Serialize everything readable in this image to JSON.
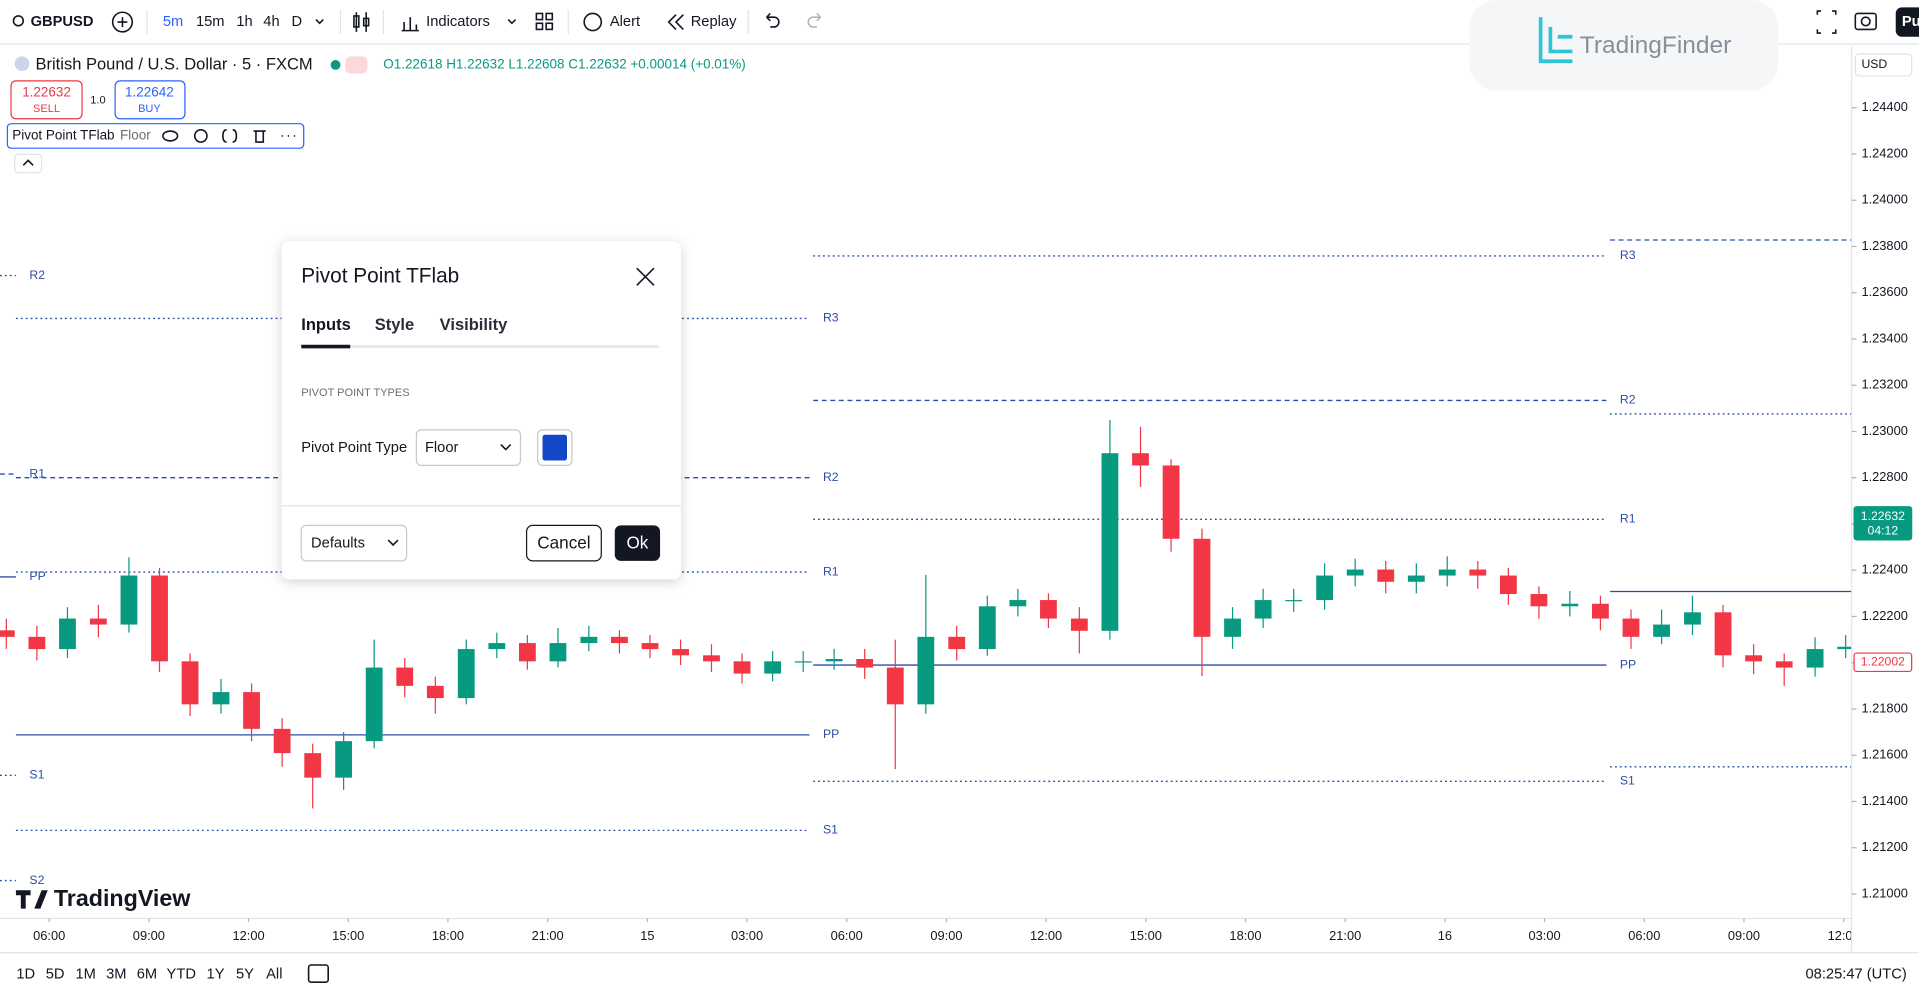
{
  "toolbar": {
    "symbol": "GBPUSD",
    "intervals": [
      "5m",
      "15m",
      "1h",
      "4h",
      "D"
    ],
    "indicators": "Indicators",
    "alert": "Alert",
    "replay": "Replay",
    "right_button": "Pu"
  },
  "watermark": "TradingFinder",
  "legend": {
    "title": "British Pound / U.S. Dollar · 5 · FXCM",
    "ohlc": "O1.22618 H1.22632 L1.22608 C1.22632 +0.00014 (+0.01%)"
  },
  "trade": {
    "sell_price": "1.22632",
    "sell": "SELL",
    "quantity": "1.0",
    "buy_price": "1.22642",
    "buy": "BUY"
  },
  "indicator": {
    "name": "Pivot Point TFlab",
    "type": "Floor"
  },
  "dialog": {
    "title": "Pivot Point TFlab",
    "tabs": [
      "Inputs",
      "Style",
      "Visibility"
    ],
    "section": "PIVOT POINT TYPES",
    "field_label": "Pivot Point Type",
    "field_value": "Floor",
    "swatch_color": "#1447c8",
    "defaults": "Defaults",
    "cancel": "Cancel",
    "ok": "Ok"
  },
  "brand": "TradingView",
  "bottom_bar": {
    "ranges": [
      "1D",
      "5D",
      "1M",
      "3M",
      "6M",
      "YTD",
      "1Y",
      "5Y",
      "All"
    ],
    "clock": "08:25:47 (UTC)"
  },
  "chart_data": {
    "type": "candlestick",
    "currency": "USD",
    "up_color": "#089981",
    "down_color": "#f23645",
    "grid": false,
    "x": [
      -1.29,
      -0.37,
      0.55,
      1.48,
      2.4,
      3.32,
      4.24,
      5.17,
      6.09,
      7.01,
      7.93,
      8.86,
      9.78,
      10.7,
      11.62,
      12.55,
      13.47,
      14.39,
      15.31,
      16.24,
      17.16,
      18.08,
      19.0,
      19.93,
      20.85,
      21.77,
      22.69,
      23.62,
      24.54,
      25.46,
      26.38,
      27.31,
      28.23,
      29.15,
      30.07,
      31.0,
      31.92,
      32.84,
      33.76,
      34.69,
      35.61,
      36.53,
      37.45,
      38.38,
      39.3,
      40.22,
      41.14,
      42.07,
      42.99,
      43.91,
      44.83,
      45.76,
      46.68,
      47.6,
      48.52,
      49.45,
      50.37,
      51.29,
      52.21,
      53.14,
      54.06
    ],
    "open": [
      1.2214,
      1.22112,
      1.22059,
      1.22191,
      1.22165,
      1.22377,
      1.22006,
      1.2182,
      1.21873,
      1.21714,
      1.21609,
      1.21503,
      1.21661,
      1.21979,
      1.219,
      1.21847,
      1.22059,
      1.22085,
      1.22006,
      1.22085,
      1.22112,
      1.22085,
      1.22059,
      1.22032,
      1.22006,
      1.21953,
      1.22006,
      1.22006,
      1.22016,
      1.21979,
      1.2182,
      1.22112,
      1.22059,
      1.22244,
      1.22271,
      1.22191,
      1.22138,
      1.22906,
      1.22853,
      1.22536,
      1.22112,
      1.22191,
      1.22271,
      1.22271,
      1.22377,
      1.22403,
      1.2235,
      1.22377,
      1.22403,
      1.22377,
      1.22297,
      1.22244,
      1.22255,
      1.22191,
      1.22112,
      1.22165,
      1.22218,
      1.22032,
      1.22006,
      1.21979,
      1.22059
    ],
    "high": [
      1.2219,
      1.2216,
      1.2224,
      1.2225,
      1.22456,
      1.2241,
      1.2204,
      1.2193,
      1.2191,
      1.2176,
      1.2165,
      1.217,
      1.221,
      1.2202,
      1.2194,
      1.221,
      1.2213,
      1.2212,
      1.2215,
      1.2216,
      1.2214,
      1.2212,
      1.221,
      1.2208,
      1.2204,
      1.2205,
      1.2205,
      1.2206,
      1.2206,
      1.221,
      1.2238,
      1.2216,
      1.2229,
      1.2232,
      1.223,
      1.2224,
      1.23049,
      1.2302,
      1.2288,
      1.2258,
      1.2224,
      1.2232,
      1.2232,
      1.2243,
      1.2245,
      1.2244,
      1.2243,
      1.2246,
      1.2244,
      1.2241,
      1.2233,
      1.2231,
      1.2229,
      1.2223,
      1.2223,
      1.2229,
      1.2225,
      1.2208,
      1.2204,
      1.2211,
      1.2212
    ],
    "low": [
      1.2206,
      1.2201,
      1.2202,
      1.2211,
      1.2213,
      1.2196,
      1.2177,
      1.2178,
      1.2166,
      1.2155,
      1.2137,
      1.2145,
      1.2163,
      1.2185,
      1.2178,
      1.2182,
      1.2202,
      1.2197,
      1.2198,
      1.2205,
      1.2204,
      1.2202,
      1.2199,
      1.2196,
      1.2191,
      1.2192,
      1.2196,
      1.2197,
      1.2193,
      1.2154,
      1.2178,
      1.2201,
      1.2203,
      1.222,
      1.2215,
      1.2204,
      1.221,
      1.2276,
      1.2248,
      1.21942,
      1.2206,
      1.2215,
      1.2222,
      1.2223,
      1.2233,
      1.223,
      1.223,
      1.2233,
      1.2232,
      1.2225,
      1.2219,
      1.222,
      1.2214,
      1.2206,
      1.2208,
      1.2212,
      1.2198,
      1.2195,
      1.219,
      1.2194,
      1.2202
    ],
    "close": [
      1.22112,
      1.22059,
      1.22191,
      1.22165,
      1.22377,
      1.22006,
      1.2182,
      1.21873,
      1.21714,
      1.21609,
      1.21503,
      1.21661,
      1.21979,
      1.219,
      1.21847,
      1.22059,
      1.22085,
      1.22006,
      1.22085,
      1.22112,
      1.22085,
      1.22059,
      1.22032,
      1.22006,
      1.21953,
      1.22006,
      1.22006,
      1.22016,
      1.21979,
      1.2182,
      1.22112,
      1.22059,
      1.22244,
      1.22271,
      1.22191,
      1.22138,
      1.22906,
      1.22853,
      1.22536,
      1.22112,
      1.22191,
      1.22271,
      1.22271,
      1.22377,
      1.22403,
      1.2235,
      1.22377,
      1.22403,
      1.22377,
      1.22297,
      1.22244,
      1.22255,
      1.22191,
      1.22112,
      1.22165,
      1.22218,
      1.22032,
      1.22006,
      1.21979,
      1.22059,
      1.22069
    ],
    "xlim": [
      -1.48,
      54.24
    ],
    "xticks": [
      {
        "value": 0,
        "label": "06:00"
      },
      {
        "value": 3,
        "label": "09:00"
      },
      {
        "value": 6,
        "label": "12:00"
      },
      {
        "value": 9,
        "label": "15:00"
      },
      {
        "value": 12,
        "label": "18:00"
      },
      {
        "value": 15,
        "label": "21:00"
      },
      {
        "value": 18,
        "label": "15"
      },
      {
        "value": 21,
        "label": "03:00"
      },
      {
        "value": 24,
        "label": "06:00"
      },
      {
        "value": 27,
        "label": "09:00"
      },
      {
        "value": 30,
        "label": "12:00"
      },
      {
        "value": 33,
        "label": "15:00"
      },
      {
        "value": 36,
        "label": "18:00"
      },
      {
        "value": 39,
        "label": "21:00"
      },
      {
        "value": 42,
        "label": "16"
      },
      {
        "value": 45,
        "label": "03:00"
      },
      {
        "value": 48,
        "label": "06:00"
      },
      {
        "value": 51,
        "label": "09:00"
      },
      {
        "value": 54,
        "label": "12:00"
      }
    ],
    "ylim": [
      1.20894,
      1.24654
    ],
    "yticks": [
      {
        "value": 1.21,
        "label": "1.21000"
      },
      {
        "value": 1.212,
        "label": "1.21200"
      },
      {
        "value": 1.214,
        "label": "1.21400"
      },
      {
        "value": 1.216,
        "label": "1.21600"
      },
      {
        "value": 1.218,
        "label": "1.21800"
      },
      {
        "value": 1.22,
        "label": "1.22000"
      },
      {
        "value": 1.222,
        "label": "1.22200"
      },
      {
        "value": 1.224,
        "label": "1.22400"
      },
      {
        "value": 1.226,
        "label": "1.22600"
      },
      {
        "value": 1.228,
        "label": "1.22800"
      },
      {
        "value": 1.23,
        "label": "1.23000"
      },
      {
        "value": 1.232,
        "label": "1.23200"
      },
      {
        "value": 1.234,
        "label": "1.23400"
      },
      {
        "value": 1.236,
        "label": "1.23600"
      },
      {
        "value": 1.238,
        "label": "1.23800"
      },
      {
        "value": 1.24,
        "label": "1.24000"
      },
      {
        "value": 1.242,
        "label": "1.24200"
      },
      {
        "value": 1.244,
        "label": "1.24400"
      }
    ],
    "pivot_color": "#2a4ea8",
    "pivots": [
      {
        "x0": -1.48,
        "x1": -1.0,
        "levels": [
          {
            "name": "R2",
            "value": 1.23674,
            "style": "dotted"
          },
          {
            "name": "R1",
            "value": 1.22816,
            "style": "dashed"
          },
          {
            "name": "PP",
            "value": 1.22371,
            "style": "solid"
          },
          {
            "name": "S1",
            "value": 1.21513,
            "style": "dotted"
          },
          {
            "name": "S2",
            "value": 1.21058,
            "style": "dotted"
          }
        ]
      },
      {
        "x0": -1.0,
        "x1": 22.88,
        "levels": [
          {
            "name": "R3",
            "value": 1.23489,
            "style": "dotted"
          },
          {
            "name": "R2",
            "value": 1.228,
            "style": "dashed"
          },
          {
            "name": "R1",
            "value": 1.22392,
            "style": "dotted"
          },
          {
            "name": "PP",
            "value": 1.21688,
            "style": "solid"
          },
          {
            "name": "S1",
            "value": 1.21275,
            "style": "dotted"
          }
        ]
      },
      {
        "x0": 22.99,
        "x1": 46.86,
        "levels": [
          {
            "name": "R3",
            "value": 1.23759,
            "style": "dotted"
          },
          {
            "name": "R2",
            "value": 1.23134,
            "style": "dashed"
          },
          {
            "name": "R1",
            "value": 1.2262,
            "style": "dotted"
          },
          {
            "name": "PP",
            "value": 1.2199,
            "style": "solid"
          },
          {
            "name": "S1",
            "value": 1.21487,
            "style": "dotted"
          }
        ]
      },
      {
        "x0": 46.97,
        "x1": 54.24,
        "levels": [
          {
            "value": 1.23828,
            "style": "dashed"
          },
          {
            "value": 1.23076,
            "style": "dotted"
          },
          {
            "value": 1.22308,
            "style": "solid"
          },
          {
            "value": 1.2155,
            "style": "dotted"
          }
        ]
      }
    ],
    "price_tags": [
      {
        "value": 1.22632,
        "label": "1.22632",
        "countdown": "04:12",
        "color": "#089981",
        "filled": true
      },
      {
        "value": 1.22002,
        "label": "1.22002",
        "color": "#f23645",
        "filled": false
      }
    ]
  }
}
